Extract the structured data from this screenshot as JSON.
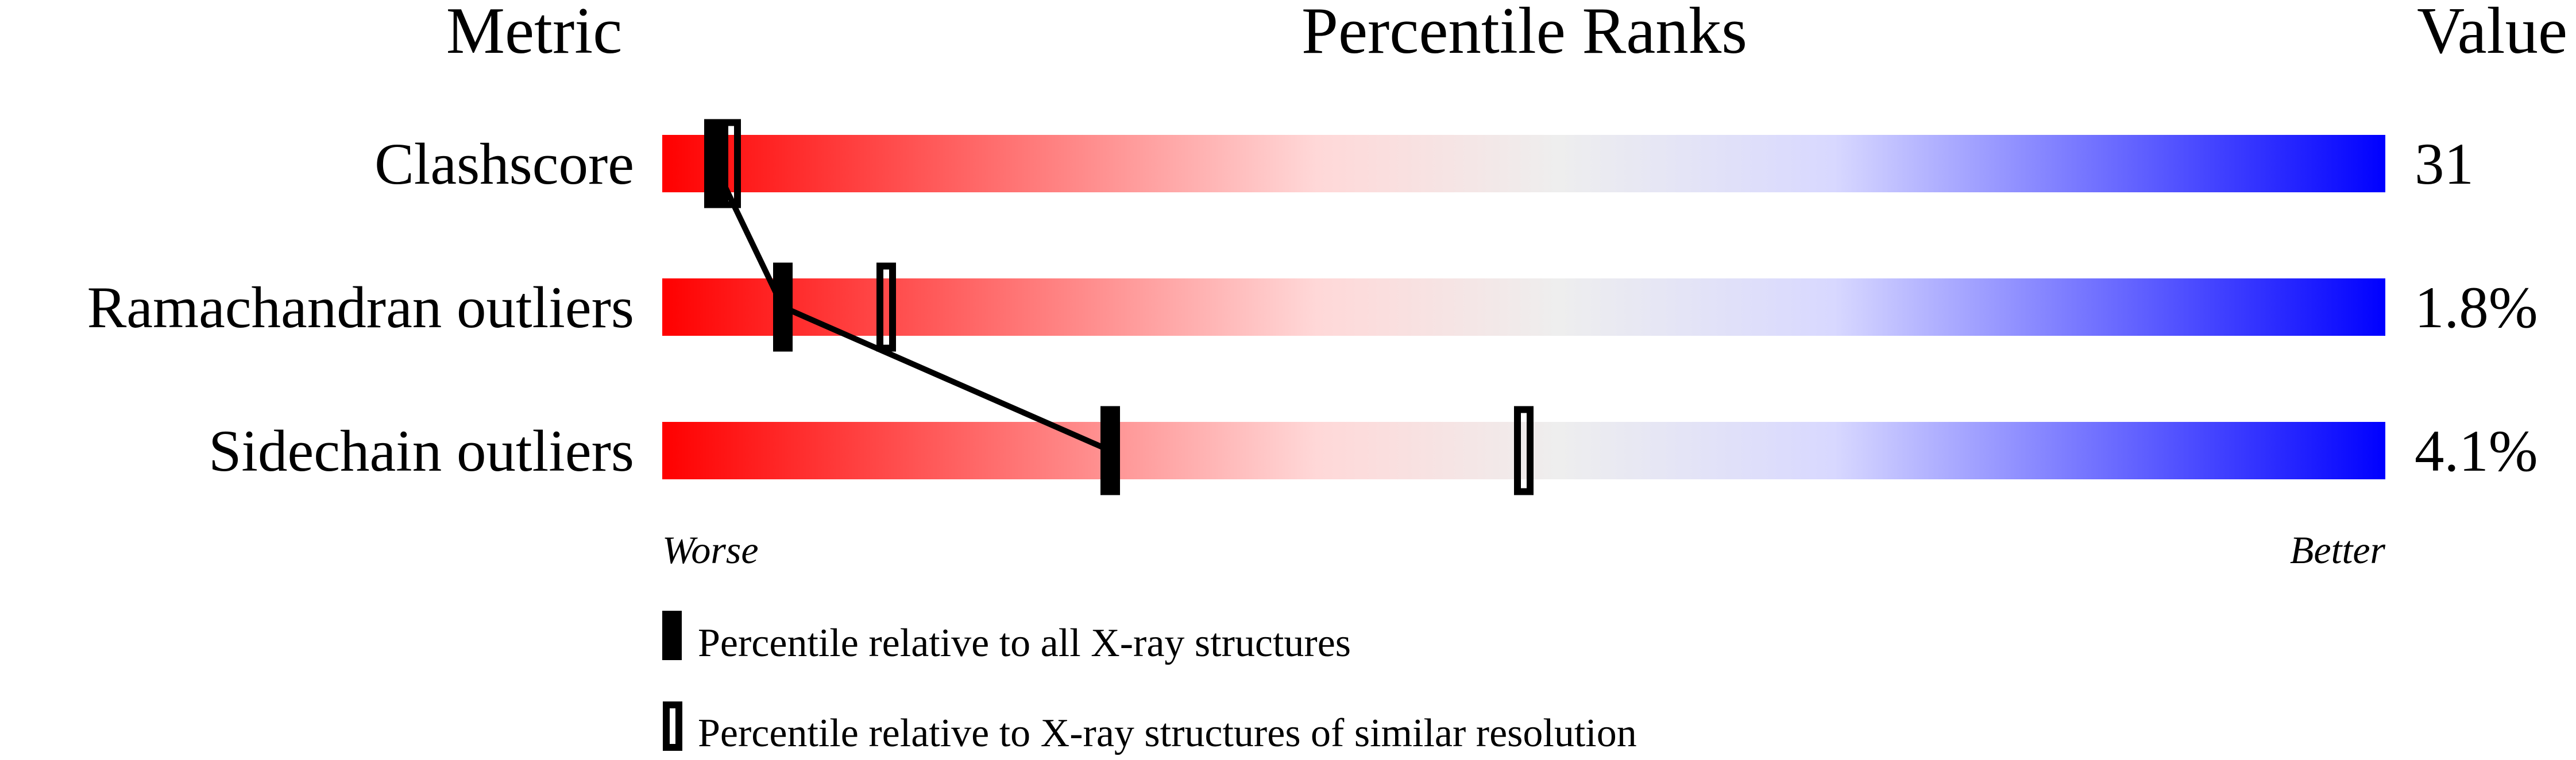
{
  "chart_data": {
    "type": "percentile-bar",
    "headers": {
      "metric": "Metric",
      "ranks": "Percentile Ranks",
      "value": "Value"
    },
    "xlim": [
      0,
      100
    ],
    "axis_labels": {
      "low": "Worse",
      "high": "Better"
    },
    "gradient_colors": [
      "#ff0000",
      "#ffd8d8",
      "#eeeeee",
      "#d8d8ff",
      "#0000ff"
    ],
    "rows": [
      {
        "metric": "Clashscore",
        "value": "31",
        "percentile_all": 3,
        "percentile_similar": 4
      },
      {
        "metric": "Ramachandran outliers",
        "value": "1.8%",
        "percentile_all": 7,
        "percentile_similar": 13
      },
      {
        "metric": "Sidechain outliers",
        "value": "4.1%",
        "percentile_all": 26,
        "percentile_similar": 50
      }
    ],
    "legend": [
      {
        "marker": "filled",
        "label": "Percentile relative to all X-ray structures"
      },
      {
        "marker": "open",
        "label": "Percentile relative to X-ray structures of similar resolution"
      }
    ]
  }
}
